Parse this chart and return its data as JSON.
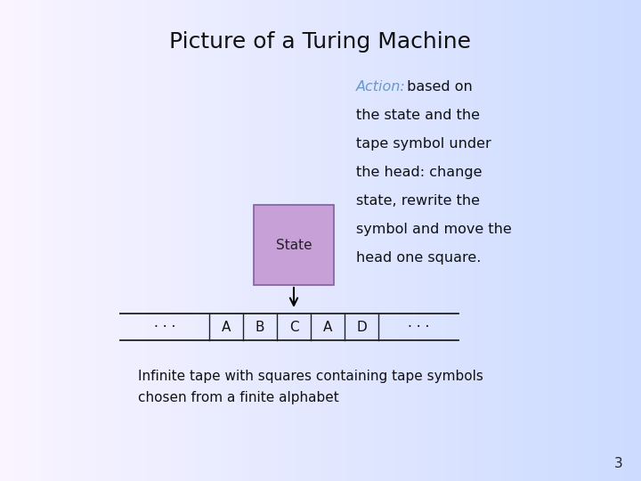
{
  "title": "Picture of a Turing Machine",
  "title_fontsize": 18,
  "title_font": "Georgia",
  "action_label": "Action:",
  "action_color": "#6699cc",
  "action_text_lines": [
    " based on",
    "the state and the",
    "tape symbol under",
    "the head: change",
    "state, rewrite the",
    "symbol and move the",
    "head one square."
  ],
  "action_text_color": "#111111",
  "action_fontsize": 11.5,
  "state_box_label": "State",
  "state_box_color": "#c8a0d8",
  "state_box_edge": "#8060a0",
  "tape_symbols": [
    "· · ·",
    "A",
    "B",
    "C",
    "A",
    "D",
    "· · ·"
  ],
  "tape_fontsize": 11,
  "note_line1": "Infinite tape with squares containing tape symbols",
  "note_line2": "chosen from a finite alphabet",
  "note_fontsize": 11,
  "note_font": "Georgia",
  "page_number": "3",
  "page_fontsize": 11
}
